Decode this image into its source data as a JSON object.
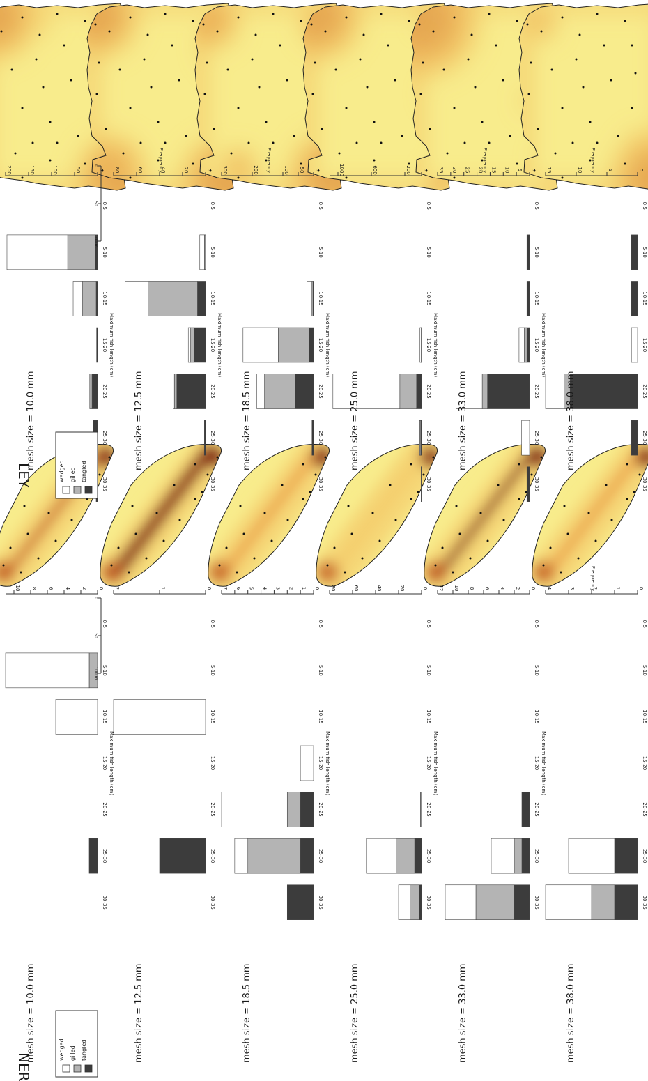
{
  "figure": {
    "sections": [
      "LEY",
      "NER"
    ],
    "legend": [
      "wedged",
      "gilled",
      "tangled"
    ],
    "legend_colors": [
      "#ffffff",
      "#b4b4b4",
      "#3c3c3c"
    ],
    "scale_bar_labels": [
      "0",
      "50",
      "100 m"
    ],
    "map_colors": [
      "#f8ec8c",
      "#f3c868",
      "#e89440",
      "#c25a20",
      "#7a1808"
    ]
  },
  "chart_data": [
    {
      "type": "bar",
      "panel": "LEY mesh size = 10.0 mm",
      "title": "mesh size = 10.0 mm",
      "xlabel": "Maximum fish length (cm)",
      "ylabel": "",
      "ylim": [
        0,
        200
      ],
      "yticks": [
        0,
        50,
        100,
        150,
        200
      ],
      "categories": [
        "0-5",
        "5-10",
        "10-15",
        "15-20",
        "20-25",
        "25-30",
        "30-35"
      ],
      "series": [
        {
          "name": "tangled",
          "values": [
            0,
            5,
            3,
            2,
            12,
            10,
            3
          ]
        },
        {
          "name": "gilled",
          "values": [
            0,
            60,
            30,
            0,
            5,
            0,
            0
          ]
        },
        {
          "name": "wedged",
          "values": [
            0,
            132,
            20,
            0,
            0,
            0,
            0
          ]
        }
      ]
    },
    {
      "type": "bar",
      "panel": "LEY mesh size = 12.5 mm",
      "title": "mesh size = 12.5 mm",
      "xlabel": "Maximum fish length (cm)",
      "ylabel": "Frequency",
      "ylim": [
        0,
        80
      ],
      "yticks": [
        0,
        20,
        40,
        60,
        80
      ],
      "categories": [
        "0-5",
        "5-10",
        "10-15",
        "15-20",
        "20-25",
        "25-30",
        "30-35"
      ],
      "series": [
        {
          "name": "tangled",
          "values": [
            0,
            0,
            7,
            10,
            25,
            1,
            0
          ]
        },
        {
          "name": "gilled",
          "values": [
            0,
            1,
            43,
            3,
            2,
            0,
            0
          ]
        },
        {
          "name": "wedged",
          "values": [
            0,
            4,
            20,
            2,
            1,
            0,
            0
          ]
        }
      ]
    },
    {
      "type": "bar",
      "panel": "LEY mesh size = 18.5 mm",
      "title": "mesh size = 18.5 mm",
      "xlabel": "Maximum fish length (cm)",
      "ylabel": "Frequency",
      "ylim": [
        0,
        300
      ],
      "yticks": [
        0,
        50,
        100,
        200,
        300
      ],
      "categories": [
        "0-5",
        "5-10",
        "10-15",
        "15-20",
        "20-25",
        "25-30",
        "30-35"
      ],
      "series": [
        {
          "name": "tangled",
          "values": [
            0,
            0,
            2,
            15,
            60,
            5,
            0
          ]
        },
        {
          "name": "gilled",
          "values": [
            0,
            0,
            5,
            100,
            100,
            0,
            0
          ]
        },
        {
          "name": "wedged",
          "values": [
            0,
            0,
            15,
            115,
            25,
            0,
            0
          ]
        }
      ]
    },
    {
      "type": "bar",
      "panel": "LEY mesh size = 25.0 mm",
      "title": "mesh size = 25.0 mm",
      "xlabel": "Maximum fish length (cm)",
      "ylabel": "",
      "ylim": [
        0,
        1100
      ],
      "yticks": [
        0,
        200,
        600,
        1000
      ],
      "categories": [
        "0-5",
        "5-10",
        "10-15",
        "15-20",
        "20-25",
        "25-30",
        "30-35"
      ],
      "series": [
        {
          "name": "tangled",
          "values": [
            0,
            0,
            0,
            2,
            60,
            8,
            2
          ]
        },
        {
          "name": "gilled",
          "values": [
            0,
            0,
            0,
            2,
            200,
            10,
            2
          ]
        },
        {
          "name": "wedged",
          "values": [
            0,
            0,
            0,
            15,
            800,
            7,
            1
          ]
        }
      ]
    },
    {
      "type": "bar",
      "panel": "LEY mesh size = 33.0 mm",
      "title": "mesh size = 33.0 mm",
      "xlabel": "Maximum fish length (cm)",
      "ylabel": "Frequency",
      "ylim": [
        0,
        35
      ],
      "yticks": [
        0,
        5,
        10,
        15,
        20,
        25,
        30,
        35
      ],
      "categories": [
        "0-5",
        "5-10",
        "10-15",
        "15-20",
        "20-25",
        "25-30",
        "30-35"
      ],
      "series": [
        {
          "name": "tangled",
          "values": [
            0,
            1,
            1,
            1,
            16,
            0,
            1
          ]
        },
        {
          "name": "gilled",
          "values": [
            0,
            0,
            0,
            1,
            2,
            0,
            0
          ]
        },
        {
          "name": "wedged",
          "values": [
            0,
            0,
            0,
            2,
            10,
            3,
            0
          ]
        }
      ]
    },
    {
      "type": "bar",
      "panel": "LEY mesh size = 38.0 mm",
      "title": "mesh size = 38.0 mm",
      "xlabel": "Maximum fish length (cm)",
      "ylabel": "Frequency",
      "ylim": [
        0,
        15
      ],
      "yticks": [
        0,
        5,
        10,
        15
      ],
      "categories": [
        "0-5",
        "5-10",
        "10-15",
        "15-20",
        "20-25",
        "25-30",
        "30-35"
      ],
      "series": [
        {
          "name": "tangled",
          "values": [
            0,
            1,
            1,
            0,
            11,
            1,
            0
          ]
        },
        {
          "name": "gilled",
          "values": [
            0,
            0,
            0,
            0,
            1,
            0,
            0
          ]
        },
        {
          "name": "wedged",
          "values": [
            0,
            0,
            0,
            1,
            3,
            0,
            0
          ]
        }
      ]
    },
    {
      "type": "bar",
      "panel": "NER mesh size = 10.0 mm",
      "title": "mesh size = 10.0 mm",
      "xlabel": "Maximum fish length (cm)",
      "ylabel": "",
      "ylim": [
        0,
        11
      ],
      "yticks": [
        0,
        2,
        4,
        6,
        8,
        10
      ],
      "categories": [
        "0-5",
        "5-10",
        "10-15",
        "15-20",
        "20-25",
        "25-30",
        "30-35"
      ],
      "series": [
        {
          "name": "tangled",
          "values": [
            0,
            0,
            0,
            0,
            0,
            1,
            0
          ]
        },
        {
          "name": "gilled",
          "values": [
            0,
            1,
            0,
            0,
            0,
            0,
            0
          ]
        },
        {
          "name": "wedged",
          "values": [
            0,
            10,
            5,
            0,
            0,
            0,
            0
          ]
        }
      ]
    },
    {
      "type": "bar",
      "panel": "NER mesh size = 12.5 mm",
      "title": "mesh size = 12.5 mm",
      "xlabel": "",
      "ylabel": "",
      "ylim": [
        0,
        2
      ],
      "yticks": [
        0,
        1,
        2
      ],
      "categories": [
        "0-5",
        "5-10",
        "10-15",
        "15-20",
        "20-25",
        "25-30",
        "30-35"
      ],
      "series": [
        {
          "name": "tangled",
          "values": [
            0,
            0,
            0,
            0,
            0,
            1,
            0
          ]
        },
        {
          "name": "gilled",
          "values": [
            0,
            0,
            0,
            0,
            0,
            0,
            0
          ]
        },
        {
          "name": "wedged",
          "values": [
            0,
            0,
            2,
            0,
            0,
            0,
            0
          ]
        }
      ]
    },
    {
      "type": "bar",
      "panel": "NER mesh size = 18.5 mm",
      "title": "mesh size = 18.5 mm",
      "xlabel": "Maximum fish length (cm)",
      "ylabel": "",
      "ylim": [
        0,
        7
      ],
      "yticks": [
        0,
        1,
        2,
        3,
        4,
        5,
        6,
        7
      ],
      "categories": [
        "0-5",
        "5-10",
        "10-15",
        "15-20",
        "20-25",
        "25-30",
        "30-35"
      ],
      "series": [
        {
          "name": "tangled",
          "values": [
            0,
            0,
            0,
            0,
            1,
            1,
            2
          ]
        },
        {
          "name": "gilled",
          "values": [
            0,
            0,
            0,
            0,
            1,
            4,
            0
          ]
        },
        {
          "name": "wedged",
          "values": [
            0,
            0,
            0,
            1,
            5,
            1,
            0
          ]
        }
      ]
    },
    {
      "type": "bar",
      "panel": "NER mesh size = 25.0 mm",
      "title": "mesh size = 25.0 mm",
      "xlabel": "Maximum fish length (cm)",
      "ylabel": "",
      "ylim": [
        0,
        80
      ],
      "yticks": [
        0,
        20,
        40,
        60,
        80
      ],
      "categories": [
        "0-5",
        "5-10",
        "10-15",
        "15-20",
        "20-25",
        "25-30",
        "30-35"
      ],
      "series": [
        {
          "name": "tangled",
          "values": [
            0,
            0,
            0,
            0,
            0,
            6,
            2
          ]
        },
        {
          "name": "gilled",
          "values": [
            0,
            0,
            0,
            0,
            1,
            16,
            8
          ]
        },
        {
          "name": "wedged",
          "values": [
            0,
            0,
            0,
            0,
            3,
            26,
            10
          ]
        }
      ]
    },
    {
      "type": "bar",
      "panel": "NER mesh size = 33.0 mm",
      "title": "mesh size = 33.0 mm",
      "xlabel": "Maximum fish length (cm)",
      "ylabel": "",
      "ylim": [
        0,
        12
      ],
      "yticks": [
        0,
        2,
        4,
        6,
        8,
        10,
        12
      ],
      "categories": [
        "0-5",
        "5-10",
        "10-15",
        "15-20",
        "20-25",
        "25-30",
        "30-35"
      ],
      "series": [
        {
          "name": "tangled",
          "values": [
            0,
            0,
            0,
            0,
            1,
            1,
            2
          ]
        },
        {
          "name": "gilled",
          "values": [
            0,
            0,
            0,
            0,
            0,
            1,
            5
          ]
        },
        {
          "name": "wedged",
          "values": [
            0,
            0,
            0,
            0,
            0,
            3,
            4
          ]
        }
      ]
    },
    {
      "type": "bar",
      "panel": "NER mesh size = 38.0 mm",
      "title": "mesh size = 38.0 mm",
      "xlabel": "",
      "ylabel": "Frequency",
      "ylim": [
        0,
        4
      ],
      "yticks": [
        0,
        1,
        2,
        3,
        4
      ],
      "categories": [
        "0-5",
        "5-10",
        "10-15",
        "15-20",
        "20-25",
        "25-30",
        "30-35"
      ],
      "series": [
        {
          "name": "tangled",
          "values": [
            0,
            0,
            0,
            0,
            0,
            1,
            1
          ]
        },
        {
          "name": "gilled",
          "values": [
            0,
            0,
            0,
            0,
            0,
            0,
            1
          ]
        },
        {
          "name": "wedged",
          "values": [
            0,
            0,
            0,
            0,
            0,
            2,
            2
          ]
        }
      ]
    }
  ]
}
